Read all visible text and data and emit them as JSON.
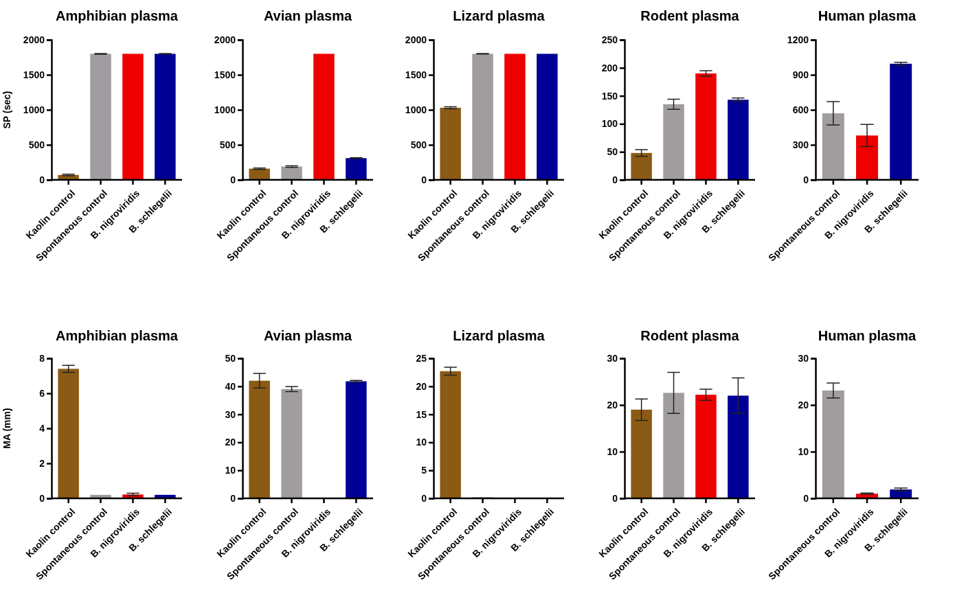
{
  "chart_data": [
    {
      "type": "bar",
      "title": "Amphibian plasma",
      "ylabel": "SP (sec)",
      "categories": [
        "Kaolin control",
        "Spontaneous control",
        "B. nigroviridis",
        "B. schlegelii"
      ],
      "values": [
        70,
        1800,
        1800,
        1800
      ],
      "errors": [
        10,
        5,
        null,
        3
      ],
      "colors": [
        "#8b5a14",
        "#a09ca0",
        "#ee0000",
        "#000096"
      ],
      "ylim": [
        0,
        2000
      ],
      "yticks": [
        0,
        500,
        1000,
        1500,
        2000
      ]
    },
    {
      "type": "bar",
      "title": "Avian plasma",
      "categories": [
        "Kaolin control",
        "Spontaneous control",
        "B. nigroviridis",
        "B. schlegelii"
      ],
      "values": [
        160,
        190,
        1800,
        310
      ],
      "errors": [
        10,
        10,
        null,
        5
      ],
      "colors": [
        "#8b5a14",
        "#a09ca0",
        "#ee0000",
        "#000096"
      ],
      "ylim": [
        0,
        2000
      ],
      "yticks": [
        0,
        500,
        1000,
        1500,
        2000
      ]
    },
    {
      "type": "bar",
      "title": "Lizard plasma",
      "categories": [
        "Kaolin control",
        "Spontaneous control",
        "B. nigroviridis",
        "B. schlegelii"
      ],
      "values": [
        1030,
        1800,
        1800,
        1800
      ],
      "errors": [
        15,
        3,
        null,
        null
      ],
      "colors": [
        "#8b5a14",
        "#a09ca0",
        "#ee0000",
        "#000096"
      ],
      "ylim": [
        0,
        2000
      ],
      "yticks": [
        0,
        500,
        1000,
        1500,
        2000
      ]
    },
    {
      "type": "bar",
      "title": "Rodent plasma",
      "categories": [
        "Kaolin control",
        "Spontaneous control",
        "B. nigroviridis",
        "B. schlegelii"
      ],
      "values": [
        48,
        135,
        190,
        143
      ],
      "errors": [
        6,
        9,
        5,
        3
      ],
      "colors": [
        "#8b5a14",
        "#a09ca0",
        "#ee0000",
        "#000096"
      ],
      "ylim": [
        0,
        250
      ],
      "yticks": [
        0,
        50,
        100,
        150,
        200,
        250
      ]
    },
    {
      "type": "bar",
      "title": "Human plasma",
      "categories": [
        "Spontaneous control",
        "B. nigroviridis",
        "B. schlegelii"
      ],
      "values": [
        570,
        380,
        995
      ],
      "errors": [
        100,
        95,
        12
      ],
      "colors": [
        "#a09ca0",
        "#ee0000",
        "#000096"
      ],
      "ylim": [
        0,
        1200
      ],
      "yticks": [
        0,
        300,
        600,
        900,
        1200
      ]
    },
    {
      "type": "bar",
      "title": "Amphibian plasma",
      "ylabel": "MA (mm)",
      "categories": [
        "Kaolin control",
        "Spontaneous control",
        "B. nigroviridis",
        "B. schlegelii"
      ],
      "values": [
        7.4,
        0.2,
        0.22,
        0.2
      ],
      "errors": [
        0.2,
        null,
        0.07,
        null
      ],
      "colors": [
        "#8b5a14",
        "#a09ca0",
        "#ee0000",
        "#000096"
      ],
      "ylim": [
        0,
        8
      ],
      "yticks": [
        0,
        2,
        4,
        6,
        8
      ]
    },
    {
      "type": "bar",
      "title": "Avian plasma",
      "categories": [
        "Kaolin control",
        "Spontaneous control",
        "B. nigroviridis",
        "B. schlegelii"
      ],
      "values": [
        42,
        39,
        0,
        41.8
      ],
      "errors": [
        2.6,
        0.9,
        null,
        0.3
      ],
      "colors": [
        "#8b5a14",
        "#a09ca0",
        "#ee0000",
        "#000096"
      ],
      "ylim": [
        0,
        50
      ],
      "yticks": [
        0,
        10,
        20,
        30,
        40,
        50
      ]
    },
    {
      "type": "bar",
      "title": "Lizard plasma",
      "categories": [
        "Kaolin control",
        "Spontaneous control",
        "B. nigroviridis",
        "B. schlegelii"
      ],
      "values": [
        22.7,
        0.2,
        0,
        0.1
      ],
      "errors": [
        0.7,
        null,
        null,
        null
      ],
      "colors": [
        "#8b5a14",
        "#a09ca0",
        "#ee0000",
        "#000096"
      ],
      "ylim": [
        0,
        25
      ],
      "yticks": [
        0,
        5,
        10,
        15,
        20,
        25
      ]
    },
    {
      "type": "bar",
      "title": "Rodent plasma",
      "categories": [
        "Kaolin control",
        "Spontaneous control",
        "B. nigroviridis",
        "B. schlegelii"
      ],
      "values": [
        19,
        22.6,
        22.2,
        22
      ],
      "errors": [
        2.3,
        4.4,
        1.2,
        3.8
      ],
      "colors": [
        "#8b5a14",
        "#a09ca0",
        "#ee0000",
        "#000096"
      ],
      "ylim": [
        0,
        30
      ],
      "yticks": [
        0,
        10,
        20,
        30
      ]
    },
    {
      "type": "bar",
      "title": "Human plasma",
      "categories": [
        "Spontaneous control",
        "B. nigroviridis",
        "B. schlegelii"
      ],
      "values": [
        23.1,
        1.0,
        1.9
      ],
      "errors": [
        1.6,
        0.15,
        0.3
      ],
      "colors": [
        "#a09ca0",
        "#ee0000",
        "#000096"
      ],
      "ylim": [
        0,
        30
      ],
      "yticks": [
        0,
        10,
        20,
        30
      ]
    }
  ]
}
